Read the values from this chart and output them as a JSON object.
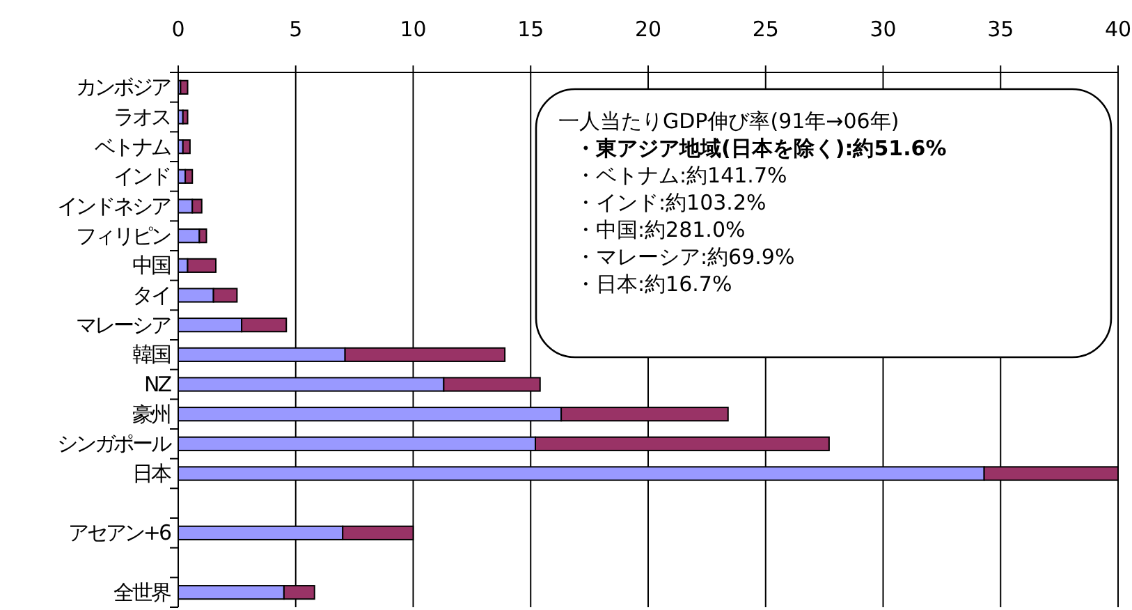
{
  "chart_data": {
    "type": "bar",
    "orientation": "horizontal",
    "stacked": true,
    "categories": [
      "カンボジア",
      "ラオス",
      "ベトナム",
      "インド",
      "インドネシア",
      "フィリピン",
      "中国",
      "タイ",
      "マレーシア",
      "韓国",
      "NZ",
      "豪州",
      "シンガポール",
      "日本",
      null,
      "アセアン+6",
      null,
      "全世界"
    ],
    "series": [
      {
        "color": "#9999ff",
        "values": [
          0.1,
          0.2,
          0.2,
          0.3,
          0.6,
          0.9,
          0.4,
          1.5,
          2.7,
          7.1,
          11.3,
          16.3,
          15.2,
          34.3,
          null,
          7.0,
          null,
          4.5
        ]
      },
      {
        "color": "#993366",
        "values": [
          0.3,
          0.2,
          0.3,
          0.3,
          0.4,
          0.3,
          1.2,
          1.0,
          1.9,
          6.8,
          4.1,
          7.1,
          12.5,
          5.7,
          null,
          3.0,
          null,
          1.3
        ]
      }
    ],
    "xlim": [
      0,
      40
    ],
    "xticks": [
      0,
      5,
      10,
      15,
      20,
      25,
      30,
      35,
      40
    ],
    "grid": "x",
    "annotations": [
      "一人当たりGDP伸び率(91年→06年)",
      "・東アジア地域(日本を除く):約51.6%",
      "・ベトナム:約141.7%",
      "・インド:約103.2%",
      "・中国:約281.0%",
      "・マレーシア:約69.9%",
      "・日本:約16.7%"
    ]
  }
}
